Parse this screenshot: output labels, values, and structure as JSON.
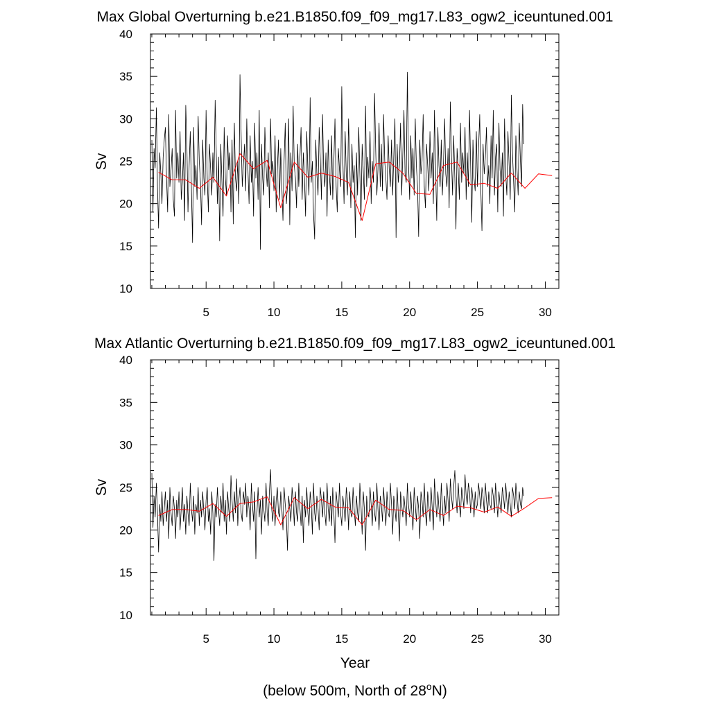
{
  "chart_data": [
    {
      "type": "line",
      "title": "Max Global Overturning b.e21.B1850.f09_f09_mg17.L83_ogw2_iceuntuned.001",
      "xlabel": "",
      "ylabel": "Sv",
      "xlim": [
        0.9,
        31.0
      ],
      "ylim": [
        10,
        40
      ],
      "xticks": [
        5,
        10,
        15,
        20,
        25,
        30
      ],
      "xtick_labels": [
        "5",
        "10",
        "15",
        "20",
        "25",
        "30"
      ],
      "yticks": [
        10,
        15,
        20,
        25,
        30,
        35,
        40
      ],
      "ytick_labels": [
        "10",
        "15",
        "20",
        "25",
        "30",
        "35",
        "40"
      ],
      "series": [
        {
          "name": "monthly",
          "color": "#000000",
          "x_start": 1.0,
          "x_step": 0.0833333,
          "values": [
            27.5,
            19.0,
            26.5,
            24.2,
            31.3,
            22.0,
            17.1,
            26.0,
            23.5,
            20.0,
            25.5,
            27.5,
            29.0,
            23.0,
            19.0,
            30.5,
            22.0,
            24.0,
            26.5,
            20.5,
            18.5,
            31.0,
            23.0,
            26.0,
            22.5,
            28.5,
            20.5,
            22.5,
            26.0,
            18.0,
            31.6,
            27.0,
            19.0,
            24.5,
            28.5,
            22.0,
            15.4,
            29.0,
            22.0,
            24.5,
            20.5,
            30.3,
            25.0,
            22.5,
            17.5,
            27.5,
            23.0,
            21.0,
            31.0,
            23.0,
            19.0,
            27.0,
            24.0,
            21.0,
            26.0,
            22.5,
            32.2,
            26.0,
            20.0,
            25.5,
            15.6,
            27.0,
            22.5,
            18.5,
            29.0,
            23.0,
            21.0,
            28.0,
            24.0,
            26.0,
            19.0,
            27.5,
            17.6,
            29.5,
            23.0,
            21.5,
            25.0,
            20.0,
            35.2,
            28.0,
            22.0,
            24.5,
            27.0,
            21.5,
            30.0,
            24.0,
            20.0,
            28.0,
            22.5,
            25.0,
            18.5,
            29.5,
            23.0,
            26.0,
            20.5,
            31.0,
            14.6,
            27.0,
            23.0,
            21.0,
            29.0,
            24.5,
            22.0,
            26.0,
            19.5,
            30.0,
            23.5,
            25.0,
            21.5,
            28.0,
            19.0,
            24.0,
            27.5,
            20.5,
            26.5,
            22.0,
            18.0,
            25.0,
            29.5,
            20.0,
            22.0,
            30.0,
            17.5,
            26.0,
            21.5,
            31.5,
            24.5,
            23.0,
            19.5,
            27.0,
            22.0,
            25.5,
            29.0,
            20.5,
            26.0,
            23.0,
            18.5,
            28.5,
            24.0,
            21.0,
            32.5,
            22.5,
            25.0,
            19.0,
            15.8,
            27.5,
            23.5,
            21.0,
            29.0,
            25.5,
            20.5,
            30.5,
            24.0,
            22.0,
            26.0,
            18.5,
            27.5,
            23.5,
            21.0,
            28.0,
            20.5,
            25.0,
            30.0,
            22.0,
            19.0,
            26.5,
            24.0,
            22.0,
            33.8,
            25.0,
            20.0,
            28.5,
            23.5,
            21.0,
            30.0,
            25.0,
            19.5,
            27.0,
            22.5,
            24.5,
            16.0,
            26.0,
            21.0,
            29.0,
            23.5,
            18.0,
            27.0,
            24.0,
            20.5,
            31.5,
            22.0,
            25.5,
            23.0,
            28.5,
            20.0,
            25.0,
            22.5,
            33.0,
            26.5,
            21.0,
            24.0,
            29.5,
            22.0,
            27.0,
            21.5,
            30.5,
            25.0,
            23.0,
            20.5,
            28.0,
            24.0,
            22.0,
            27.5,
            21.0,
            25.5,
            30.0,
            16.0,
            27.0,
            22.5,
            24.5,
            29.5,
            21.0,
            26.0,
            31.0,
            23.5,
            22.5,
            35.5,
            25.0,
            20.5,
            28.0,
            23.0,
            26.5,
            21.0,
            30.0,
            24.5,
            22.0,
            16.1,
            27.5,
            23.5,
            25.0,
            30.5,
            22.0,
            19.5,
            27.0,
            24.5,
            21.5,
            28.5,
            23.0,
            26.0,
            20.0,
            31.0,
            24.0,
            18.0,
            29.0,
            24.5,
            22.0,
            27.5,
            21.0,
            25.0,
            30.0,
            23.5,
            22.0,
            26.5,
            19.5,
            32.0,
            25.5,
            21.0,
            28.0,
            23.0,
            17.0,
            26.5,
            24.0,
            20.5,
            29.5,
            22.5,
            26.0,
            23.5,
            29.0,
            20.5,
            26.0,
            22.0,
            31.0,
            24.5,
            17.8,
            27.5,
            23.0,
            21.5,
            28.5,
            22.0,
            26.5,
            30.5,
            21.5,
            16.8,
            27.0,
            23.5,
            25.5,
            29.0,
            22.0,
            24.5,
            20.0,
            28.0,
            23.0,
            31.0,
            21.0,
            25.5,
            27.0,
            19.0,
            29.5,
            24.0,
            22.0,
            26.0,
            18.5,
            30.0,
            23.5,
            21.0,
            28.5,
            24.5,
            20.5,
            32.8,
            26.0,
            22.5,
            19.0,
            28.0,
            24.0,
            21.0,
            29.5,
            25.0,
            22.0,
            31.7,
            27.0
          ]
        },
        {
          "name": "annual mean",
          "color": "#ff0000",
          "x": [
            1.5,
            2.5,
            3.5,
            4.5,
            5.5,
            6.5,
            7.5,
            8.5,
            9.5,
            10.5,
            11.5,
            12.5,
            13.5,
            14.5,
            15.5,
            16.5,
            17.5,
            18.5,
            19.5,
            20.5,
            21.5,
            22.5,
            23.5,
            24.5,
            25.5,
            26.5,
            27.5,
            28.5,
            29.5,
            30.5
          ],
          "values": [
            23.7,
            22.8,
            22.8,
            21.8,
            23.1,
            20.9,
            25.9,
            24.1,
            25.1,
            19.5,
            24.9,
            23.1,
            23.6,
            23.2,
            22.5,
            18.0,
            24.7,
            24.9,
            23.6,
            21.2,
            21.1,
            24.5,
            24.9,
            22.2,
            22.4,
            21.8,
            23.6,
            21.8,
            23.5,
            23.3
          ]
        }
      ]
    },
    {
      "type": "line",
      "title": "Max Atlantic Overturning b.e21.B1850.f09_f09_mg17.L83_ogw2_iceuntuned.001",
      "xlabel": "Year",
      "ylabel": "Sv",
      "xlim": [
        0.9,
        31.0
      ],
      "ylim": [
        10,
        40
      ],
      "xticks": [
        5,
        10,
        15,
        20,
        25,
        30
      ],
      "xtick_labels": [
        "5",
        "10",
        "15",
        "20",
        "25",
        "30"
      ],
      "yticks": [
        10,
        15,
        20,
        25,
        30,
        35,
        40
      ],
      "ytick_labels": [
        "10",
        "15",
        "20",
        "25",
        "30",
        "35",
        "40"
      ],
      "series": [
        {
          "name": "monthly",
          "color": "#000000",
          "x_start": 1.0,
          "x_step": 0.0833333,
          "values": [
            26.7,
            20.3,
            24.0,
            21.5,
            25.5,
            22.0,
            17.4,
            23.0,
            21.0,
            24.5,
            20.5,
            22.5,
            24.5,
            21.0,
            23.5,
            19.0,
            25.0,
            22.0,
            20.5,
            24.0,
            22.5,
            19.0,
            23.5,
            21.5,
            24.5,
            20.0,
            22.5,
            25.0,
            21.0,
            23.0,
            19.5,
            24.0,
            22.0,
            20.5,
            25.5,
            22.5,
            21.0,
            24.0,
            19.5,
            23.0,
            22.0,
            25.0,
            20.5,
            23.5,
            21.5,
            24.5,
            22.0,
            20.0,
            23.5,
            25.0,
            21.0,
            22.5,
            19.5,
            24.5,
            22.0,
            16.4,
            23.0,
            21.5,
            25.0,
            22.5,
            20.5,
            24.0,
            22.0,
            25.5,
            21.0,
            23.5,
            19.5,
            24.5,
            22.5,
            21.0,
            26.4,
            23.5,
            21.0,
            24.5,
            22.0,
            26.0,
            20.5,
            23.5,
            25.0,
            22.0,
            21.0,
            24.5,
            23.0,
            25.5,
            21.5,
            24.0,
            22.5,
            20.0,
            25.5,
            23.0,
            21.0,
            24.5,
            16.6,
            22.0,
            25.0,
            21.5,
            23.5,
            19.5,
            24.0,
            22.5,
            21.0,
            25.5,
            22.0,
            20.5,
            24.5,
            27.1,
            22.5,
            21.0,
            24.0,
            20.5,
            23.5,
            25.0,
            22.0,
            21.5,
            24.5,
            22.5,
            20.0,
            25.0,
            23.0,
            21.5,
            17.6,
            24.0,
            22.5,
            21.0,
            25.0,
            23.5,
            20.5,
            24.5,
            22.0,
            21.0,
            25.5,
            22.5,
            20.5,
            24.0,
            18.5,
            23.5,
            21.5,
            25.0,
            22.0,
            20.5,
            24.5,
            23.0,
            19.5,
            25.5,
            22.0,
            21.0,
            24.0,
            22.5,
            20.0,
            25.0,
            23.5,
            21.5,
            24.5,
            22.0,
            20.5,
            25.5,
            22.5,
            21.0,
            24.0,
            20.5,
            25.0,
            22.0,
            18.5,
            24.5,
            23.0,
            21.5,
            25.5,
            22.0,
            20.5,
            24.0,
            22.5,
            21.0,
            25.0,
            23.5,
            20.0,
            24.5,
            22.0,
            21.5,
            25.0,
            22.5,
            20.5,
            24.0,
            22.0,
            21.0,
            25.5,
            23.0,
            19.5,
            24.5,
            22.5,
            17.6,
            24.0,
            22.0,
            21.5,
            25.0,
            23.0,
            20.5,
            24.5,
            22.0,
            21.0,
            25.5,
            22.5,
            20.0,
            24.0,
            23.0,
            21.0,
            25.0,
            22.5,
            20.5,
            24.5,
            22.0,
            21.5,
            25.5,
            23.0,
            19.5,
            24.0,
            22.5,
            21.0,
            25.0,
            22.0,
            18.7,
            24.5,
            23.0,
            21.5,
            24.0,
            22.5,
            20.5,
            25.5,
            23.0,
            21.5,
            24.5,
            22.0,
            20.0,
            25.0,
            23.0,
            21.0,
            24.0,
            22.5,
            19.0,
            24.5,
            23.5,
            21.5,
            25.5,
            22.0,
            20.5,
            24.5,
            23.0,
            21.0,
            25.0,
            22.5,
            20.0,
            26.0,
            23.5,
            21.5,
            24.5,
            22.5,
            21.0,
            25.5,
            23.0,
            20.5,
            24.0,
            22.0,
            25.5,
            23.5,
            21.0,
            26.0,
            24.0,
            22.5,
            25.0,
            27.0,
            24.0,
            22.0,
            25.5,
            23.0,
            21.5,
            25.0,
            24.0,
            22.5,
            26.5,
            24.0,
            23.0,
            25.5,
            24.5,
            22.0,
            25.0,
            23.5,
            21.5,
            24.5,
            22.5,
            23.0,
            25.5,
            24.0,
            22.5,
            25.0,
            24.0,
            22.0,
            25.5,
            23.5,
            22.0,
            24.5,
            23.0,
            22.5,
            25.0,
            24.0,
            22.0,
            25.5,
            23.5,
            21.5,
            24.5,
            23.0,
            22.0,
            25.0,
            24.0,
            22.5,
            25.5,
            23.5,
            22.0,
            24.5,
            23.0,
            21.5,
            25.0,
            24.0,
            22.5,
            25.5,
            23.5,
            22.0,
            24.5,
            23.0,
            22.5,
            25.0,
            24.0
          ]
        },
        {
          "name": "annual mean",
          "color": "#ff0000",
          "x": [
            1.5,
            2.5,
            3.5,
            4.5,
            5.5,
            6.5,
            7.5,
            8.5,
            9.5,
            10.5,
            11.5,
            12.5,
            13.5,
            14.5,
            15.5,
            16.5,
            17.5,
            18.5,
            19.5,
            20.5,
            21.5,
            22.5,
            23.5,
            24.5,
            25.5,
            26.5,
            27.5,
            28.5,
            29.5,
            30.5
          ],
          "values": [
            21.7,
            22.4,
            22.4,
            22.2,
            23.1,
            21.6,
            23.1,
            23.3,
            23.9,
            20.6,
            23.8,
            22.5,
            23.6,
            22.7,
            22.6,
            20.6,
            23.5,
            22.4,
            22.3,
            21.2,
            22.4,
            21.7,
            22.8,
            22.6,
            22.1,
            22.7,
            21.6,
            22.6,
            23.7,
            23.8
          ]
        }
      ]
    }
  ],
  "footnote": {
    "text_before": "(below 500m, North of 28",
    "superscript": "o",
    "text_after": "N)"
  }
}
